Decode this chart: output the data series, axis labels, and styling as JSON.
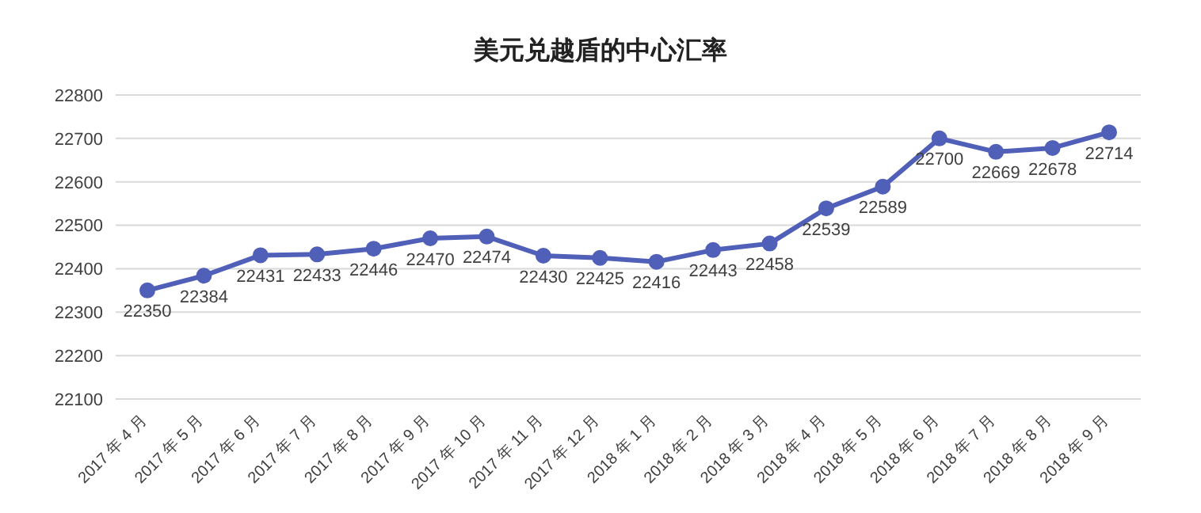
{
  "chart_data": {
    "type": "line",
    "title": "美元兑越盾的中心汇率",
    "categories": [
      "2017 年 4 月",
      "2017 年 5 月",
      "2017 年 6 月",
      "2017 年 7 月",
      "2017 年 8 月",
      "2017 年 9 月",
      "2017 年 10 月",
      "2017 年 11 月",
      "2017 年 12 月",
      "2018 年 1 月",
      "2018 年 2 月",
      "2018 年 3 月",
      "2018 年 4 月",
      "2018 年 5 月",
      "2018 年 6 月",
      "2018 年 7 月",
      "2018 年 8 月",
      "2018 年 9 月"
    ],
    "series": [
      {
        "color": "#5060b8",
        "values": [
          22350,
          22384,
          22431,
          22433,
          22446,
          22470,
          22474,
          22430,
          22425,
          22416,
          22443,
          22458,
          22539,
          22589,
          22700,
          22669,
          22678,
          22714
        ]
      }
    ],
    "ylim": [
      22100,
      22800
    ],
    "yticks": [
      22100,
      22200,
      22300,
      22400,
      22500,
      22600,
      22700,
      22800
    ],
    "grid": "y",
    "legend": false,
    "marker": "circle",
    "line_style": "solid",
    "data_labels": true
  }
}
